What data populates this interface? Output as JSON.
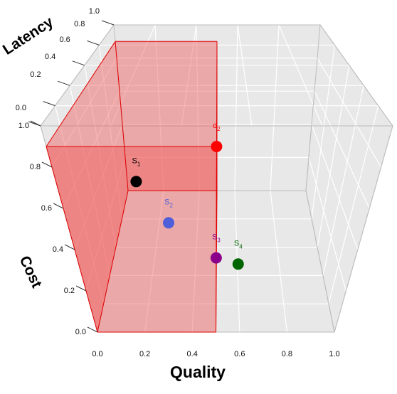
{
  "chart_data": {
    "type": "scatter",
    "projection": "3d",
    "axes": {
      "x": {
        "label": "Quality",
        "range": [
          0,
          1
        ],
        "ticks": [
          "0.0",
          "0.2",
          "0.4",
          "0.6",
          "0.8",
          "1.0"
        ]
      },
      "y": {
        "label": "Cost",
        "range": [
          0,
          1
        ],
        "ticks": [
          "0.0",
          "0.2",
          "0.4",
          "0.6",
          "0.8",
          "1.0"
        ]
      },
      "z": {
        "label": "Latency",
        "range": [
          0,
          1
        ],
        "ticks": [
          "0.0",
          "0.2",
          "0.4",
          "0.6",
          "0.8",
          "1.0"
        ]
      }
    },
    "grid": true,
    "points": [
      {
        "label": "d",
        "sub": "2",
        "color": "#ff0000",
        "x": 0.5,
        "y": 0.9,
        "z": 0.0
      },
      {
        "label": "S",
        "sub": "1",
        "color": "#000000",
        "x": 0.25,
        "y": 0.73,
        "z": 0.0
      },
      {
        "label": "S",
        "sub": "2",
        "color": "#4f5fd9",
        "x": 0.34,
        "y": 0.53,
        "z": 0.0
      },
      {
        "label": "S",
        "sub": "3",
        "color": "#8b008b",
        "x": 0.5,
        "y": 0.36,
        "z": 0.0
      },
      {
        "label": "S",
        "sub": "4",
        "color": "#006400",
        "x": 0.58,
        "y": 0.33,
        "z": 0.0
      }
    ],
    "dominated_region": {
      "color": "#f05a5a",
      "x": [
        0,
        0.5
      ],
      "y": [
        0,
        0.9
      ]
    }
  }
}
